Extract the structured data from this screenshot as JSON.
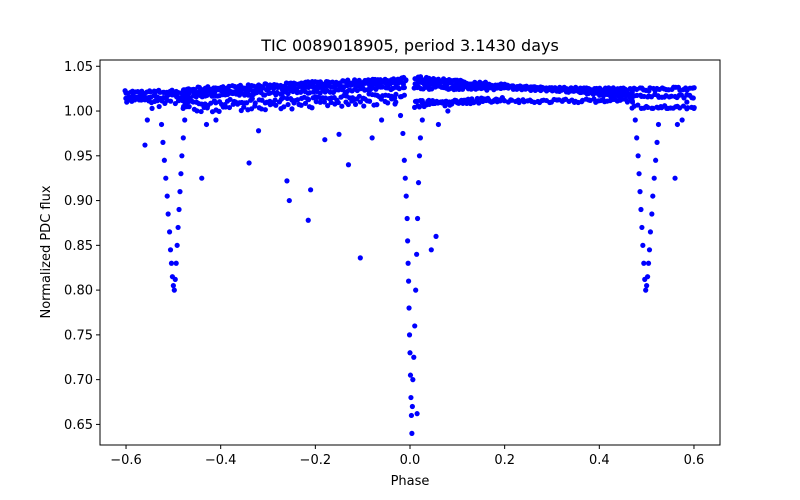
{
  "chart_data": {
    "type": "scatter",
    "title": "TIC 0089018905, period 3.1430 days",
    "xlabel": "Phase",
    "ylabel": "Normalized PDC flux",
    "xlim": [
      -0.655,
      0.655
    ],
    "ylim": [
      0.627,
      1.057
    ],
    "xticks": [
      -0.6,
      -0.4,
      -0.2,
      0.0,
      0.2,
      0.4,
      0.6
    ],
    "xtick_labels": [
      "−0.6",
      "−0.4",
      "−0.2",
      "0.0",
      "0.2",
      "0.4",
      "0.6"
    ],
    "yticks": [
      0.65,
      0.7,
      0.75,
      0.8,
      0.85,
      0.9,
      0.95,
      1.0,
      1.05
    ],
    "ytick_labels": [
      "0.65",
      "0.70",
      "0.75",
      "0.80",
      "0.85",
      "0.90",
      "0.95",
      "1.00",
      "1.05"
    ],
    "grid": false,
    "marker_color": "#0000ff",
    "primary_eclipse": {
      "phase": 0.0,
      "min_flux": 0.64
    },
    "secondary_eclipse": {
      "phases": [
        -0.5,
        0.5
      ],
      "min_flux": 0.8
    },
    "series": [
      {
        "name": "Normalized PDC flux",
        "points": [
          [
            -0.6,
            1.02
          ],
          [
            -0.585,
            1.019
          ],
          [
            -0.57,
            1.021
          ],
          [
            -0.56,
            0.962
          ],
          [
            -0.555,
            0.99
          ],
          [
            -0.545,
            1.003
          ],
          [
            -0.537,
            1.012
          ],
          [
            -0.53,
            1.005
          ],
          [
            -0.525,
            0.985
          ],
          [
            -0.522,
            0.965
          ],
          [
            -0.519,
            0.945
          ],
          [
            -0.516,
            0.925
          ],
          [
            -0.513,
            0.905
          ],
          [
            -0.511,
            0.885
          ],
          [
            -0.508,
            0.865
          ],
          [
            -0.506,
            0.845
          ],
          [
            -0.504,
            0.83
          ],
          [
            -0.502,
            0.815
          ],
          [
            -0.5,
            0.805
          ],
          [
            -0.498,
            0.8
          ],
          [
            -0.496,
            0.812
          ],
          [
            -0.494,
            0.83
          ],
          [
            -0.492,
            0.85
          ],
          [
            -0.49,
            0.87
          ],
          [
            -0.488,
            0.89
          ],
          [
            -0.486,
            0.91
          ],
          [
            -0.484,
            0.93
          ],
          [
            -0.482,
            0.95
          ],
          [
            -0.479,
            0.97
          ],
          [
            -0.476,
            0.99
          ],
          [
            -0.47,
            1.005
          ],
          [
            -0.44,
            0.925
          ],
          [
            -0.43,
            0.985
          ],
          [
            -0.41,
            0.99
          ],
          [
            -0.34,
            0.942
          ],
          [
            -0.32,
            0.978
          ],
          [
            -0.26,
            0.922
          ],
          [
            -0.255,
            0.9
          ],
          [
            -0.21,
            0.912
          ],
          [
            -0.215,
            0.878
          ],
          [
            -0.18,
            0.968
          ],
          [
            -0.15,
            0.974
          ],
          [
            -0.13,
            0.94
          ],
          [
            -0.105,
            0.836
          ],
          [
            -0.08,
            0.97
          ],
          [
            -0.06,
            0.99
          ],
          [
            -0.03,
            1.01
          ],
          [
            -0.02,
            0.995
          ],
          [
            -0.015,
            0.975
          ],
          [
            -0.012,
            0.945
          ],
          [
            -0.01,
            0.925
          ],
          [
            -0.008,
            0.905
          ],
          [
            -0.006,
            0.88
          ],
          [
            -0.005,
            0.855
          ],
          [
            -0.004,
            0.83
          ],
          [
            -0.003,
            0.81
          ],
          [
            -0.002,
            0.78
          ],
          [
            -0.001,
            0.75
          ],
          [
            0.0,
            0.73
          ],
          [
            0.001,
            0.705
          ],
          [
            0.002,
            0.68
          ],
          [
            0.003,
            0.66
          ],
          [
            0.004,
            0.64
          ],
          [
            0.005,
            0.67
          ],
          [
            0.006,
            0.7
          ],
          [
            0.008,
            0.725
          ],
          [
            0.01,
            0.76
          ],
          [
            0.012,
            0.8
          ],
          [
            0.014,
            0.84
          ],
          [
            0.016,
            0.88
          ],
          [
            0.018,
            0.92
          ],
          [
            0.02,
            0.95
          ],
          [
            0.022,
            0.97
          ],
          [
            0.026,
            0.99
          ],
          [
            0.03,
            1.005
          ],
          [
            0.015,
            0.662
          ],
          [
            0.045,
            0.845
          ],
          [
            0.055,
            0.86
          ],
          [
            0.06,
            0.985
          ],
          [
            0.08,
            1.0
          ],
          [
            0.2,
            1.03
          ],
          [
            0.4,
            1.02
          ],
          [
            0.47,
            1.01
          ],
          [
            0.476,
            0.99
          ],
          [
            0.479,
            0.97
          ],
          [
            0.482,
            0.95
          ],
          [
            0.484,
            0.93
          ],
          [
            0.486,
            0.91
          ],
          [
            0.488,
            0.89
          ],
          [
            0.49,
            0.87
          ],
          [
            0.492,
            0.85
          ],
          [
            0.494,
            0.83
          ],
          [
            0.496,
            0.812
          ],
          [
            0.498,
            0.8
          ],
          [
            0.5,
            0.805
          ],
          [
            0.502,
            0.815
          ],
          [
            0.504,
            0.83
          ],
          [
            0.506,
            0.845
          ],
          [
            0.508,
            0.865
          ],
          [
            0.511,
            0.885
          ],
          [
            0.513,
            0.905
          ],
          [
            0.516,
            0.925
          ],
          [
            0.519,
            0.945
          ],
          [
            0.522,
            0.965
          ],
          [
            0.525,
            0.985
          ],
          [
            0.53,
            1.005
          ],
          [
            0.545,
            1.003
          ],
          [
            0.56,
            0.925
          ],
          [
            0.565,
            0.985
          ],
          [
            0.575,
            0.99
          ],
          [
            0.585,
            1.01
          ],
          [
            0.6,
            1.003
          ]
        ],
        "bands": [
          {
            "x0": -0.6,
            "y0": 1.021,
            "x1": -0.47,
            "y1": 1.022,
            "n": 28,
            "jitter": 0.002
          },
          {
            "x0": -0.6,
            "y0": 1.015,
            "x1": -0.47,
            "y1": 1.017,
            "n": 28,
            "jitter": 0.002
          },
          {
            "x0": -0.6,
            "y0": 1.011,
            "x1": -0.47,
            "y1": 1.01,
            "n": 20,
            "jitter": 0.002
          },
          {
            "x0": -0.48,
            "y0": 1.024,
            "x1": -0.01,
            "y1": 1.036,
            "n": 110,
            "jitter": 0.002
          },
          {
            "x0": -0.48,
            "y0": 1.02,
            "x1": -0.01,
            "y1": 1.032,
            "n": 100,
            "jitter": 0.002
          },
          {
            "x0": -0.48,
            "y0": 1.016,
            "x1": -0.01,
            "y1": 1.026,
            "n": 90,
            "jitter": 0.002
          },
          {
            "x0": -0.48,
            "y0": 1.008,
            "x1": -0.01,
            "y1": 1.018,
            "n": 80,
            "jitter": 0.003
          },
          {
            "x0": -0.48,
            "y0": 1.002,
            "x1": -0.03,
            "y1": 1.01,
            "n": 60,
            "jitter": 0.004
          },
          {
            "x0": 0.01,
            "y0": 1.037,
            "x1": 0.47,
            "y1": 1.016,
            "n": 110,
            "jitter": 0.002
          },
          {
            "x0": 0.01,
            "y0": 1.032,
            "x1": 0.47,
            "y1": 1.02,
            "n": 100,
            "jitter": 0.002
          },
          {
            "x0": 0.01,
            "y0": 1.026,
            "x1": 0.47,
            "y1": 1.024,
            "n": 100,
            "jitter": 0.002
          },
          {
            "x0": 0.01,
            "y0": 1.01,
            "x1": 0.47,
            "y1": 1.012,
            "n": 90,
            "jitter": 0.002
          },
          {
            "x0": 0.01,
            "y0": 1.006,
            "x1": 0.2,
            "y1": 1.014,
            "n": 40,
            "jitter": 0.003
          },
          {
            "x0": 0.47,
            "y0": 1.024,
            "x1": 0.6,
            "y1": 1.025,
            "n": 28,
            "jitter": 0.002
          },
          {
            "x0": 0.47,
            "y0": 1.018,
            "x1": 0.6,
            "y1": 1.016,
            "n": 26,
            "jitter": 0.002
          },
          {
            "x0": 0.47,
            "y0": 1.005,
            "x1": 0.6,
            "y1": 1.004,
            "n": 24,
            "jitter": 0.002
          }
        ]
      }
    ]
  }
}
